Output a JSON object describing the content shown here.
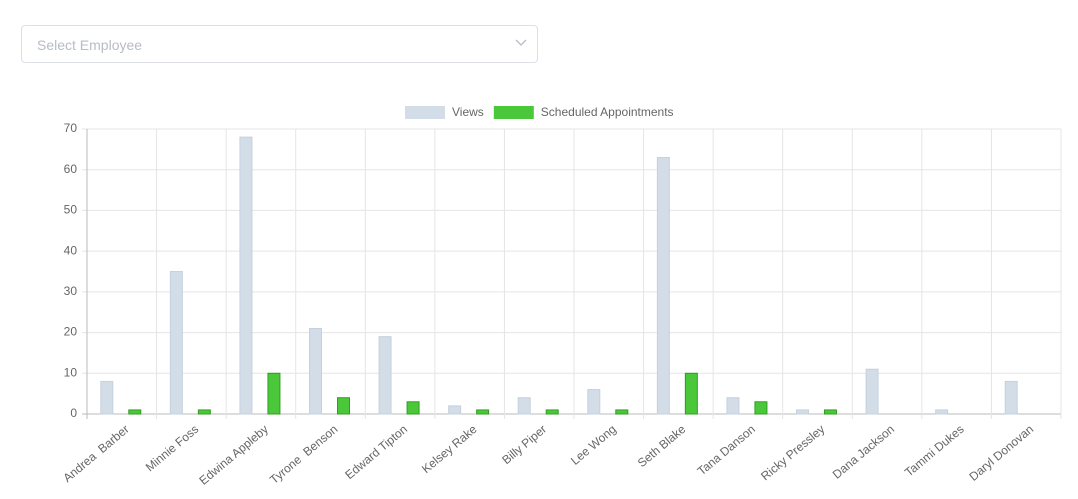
{
  "select": {
    "placeholder": "Select Employee"
  },
  "chart_data": {
    "type": "bar",
    "categories": [
      "Andrea  Barber",
      "Minnie Foss",
      "Edwina Appleby",
      "Tyrone  Benson",
      "Edward Tipton",
      "Kelsey Rake",
      "Billy Piper",
      "Lee Wong",
      "Seth Blake",
      "Tana Danson",
      "Ricky Pressley",
      "Dana Jackson",
      "Tammi Dukes",
      "Daryl Donovan"
    ],
    "series": [
      {
        "name": "Views",
        "color": "#d3dde8",
        "values": [
          8,
          35,
          68,
          21,
          19,
          2,
          4,
          6,
          63,
          4,
          1,
          11,
          1,
          8
        ]
      },
      {
        "name": "Scheduled Appointments",
        "color": "#4bc83a",
        "values": [
          1,
          1,
          10,
          4,
          3,
          1,
          1,
          1,
          10,
          3,
          1,
          0,
          0,
          0
        ]
      }
    ],
    "ylim": [
      0,
      70
    ],
    "yticks": [
      0,
      10,
      20,
      30,
      40,
      50,
      60,
      70
    ],
    "grid": true,
    "legend": "top"
  }
}
